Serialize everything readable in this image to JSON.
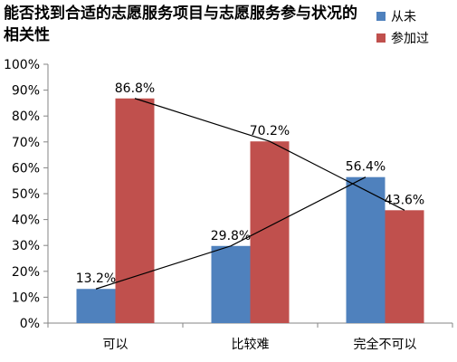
{
  "chart_data": {
    "type": "bar",
    "title": "能否找到合适的志愿服务项目与志愿服务参与状况的相关性",
    "categories": [
      "可以",
      "比较难",
      "完全不可以"
    ],
    "series": [
      {
        "name": "从未",
        "values": [
          13.2,
          29.8,
          56.4
        ],
        "value_labels": [
          "13.2%",
          "29.8%",
          "56.4%"
        ],
        "color": "#4F81BD"
      },
      {
        "name": "参加过",
        "values": [
          86.8,
          70.2,
          43.6
        ],
        "value_labels": [
          "86.8%",
          "70.2%",
          "43.6%"
        ],
        "color": "#C0504D"
      }
    ],
    "trend_lines": "each series connected across categories with a black line",
    "ylim": [
      0,
      100
    ],
    "y_ticks": [
      "0%",
      "10%",
      "20%",
      "30%",
      "40%",
      "50%",
      "60%",
      "70%",
      "80%",
      "90%",
      "100%"
    ],
    "xlabel": "",
    "ylabel": "",
    "legend_position": "top-right",
    "grid": false
  }
}
